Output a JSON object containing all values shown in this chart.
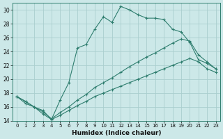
{
  "title": "",
  "xlabel": "Humidex (Indice chaleur)",
  "bg_color": "#cce8e8",
  "grid_color": "#aacece",
  "line_color": "#2e7d6e",
  "xlim": [
    -0.5,
    23.5
  ],
  "ylim": [
    14,
    31
  ],
  "xticks": [
    0,
    1,
    2,
    3,
    4,
    5,
    6,
    7,
    8,
    9,
    10,
    11,
    12,
    13,
    14,
    15,
    16,
    17,
    18,
    19,
    20,
    21,
    22,
    23
  ],
  "yticks": [
    14,
    16,
    18,
    20,
    22,
    24,
    26,
    28,
    30
  ],
  "series": [
    {
      "x": [
        0,
        1,
        2,
        3,
        4,
        5,
        6,
        7,
        8,
        9,
        10,
        11,
        12,
        13,
        14,
        15,
        16,
        17,
        18,
        19,
        20,
        21,
        22,
        23
      ],
      "y": [
        17.5,
        16.8,
        16.0,
        15.5,
        14.2,
        17.0,
        19.5,
        24.5,
        25.0,
        27.2,
        29.0,
        28.2,
        30.5,
        30.0,
        29.3,
        28.8,
        28.8,
        28.6,
        27.2,
        26.8,
        25.3,
        22.8,
        22.3,
        21.5
      ]
    },
    {
      "x": [
        0,
        1,
        2,
        3,
        4,
        5,
        6,
        7,
        8,
        9,
        10,
        11,
        12,
        13,
        14,
        15,
        16,
        17,
        18,
        19,
        20,
        21,
        22,
        23
      ],
      "y": [
        17.5,
        16.8,
        16.0,
        15.3,
        14.3,
        15.2,
        16.0,
        17.0,
        17.8,
        18.8,
        19.5,
        20.2,
        21.0,
        21.8,
        22.5,
        23.2,
        23.8,
        24.5,
        25.2,
        25.8,
        25.5,
        23.5,
        22.5,
        21.5
      ]
    },
    {
      "x": [
        0,
        1,
        2,
        3,
        4,
        5,
        6,
        7,
        8,
        9,
        10,
        11,
        12,
        13,
        14,
        15,
        16,
        17,
        18,
        19,
        20,
        21,
        22,
        23
      ],
      "y": [
        17.5,
        16.5,
        16.0,
        15.0,
        14.2,
        14.8,
        15.5,
        16.2,
        16.8,
        17.5,
        18.0,
        18.5,
        19.0,
        19.5,
        20.0,
        20.5,
        21.0,
        21.5,
        22.0,
        22.5,
        23.0,
        22.5,
        21.5,
        21.0
      ]
    }
  ]
}
